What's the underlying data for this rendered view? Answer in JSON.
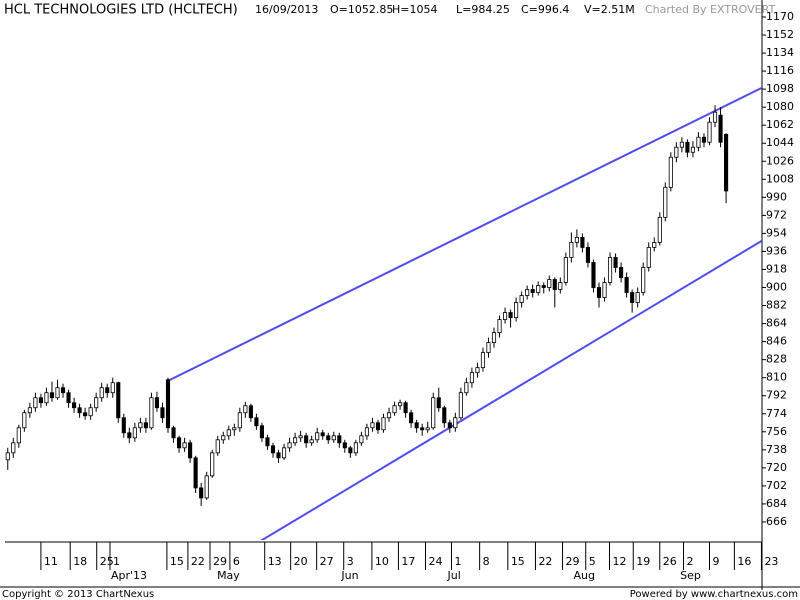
{
  "chart_data": {
    "type": "candlestick",
    "title": "HCL TECHNOLOGIES LTD (HCLTECH)",
    "date": "16/09/2013",
    "open_label": "O=1052.85",
    "high_label": "H=1054",
    "low_label": "L=984.25",
    "close_label": "C=996.4",
    "volume_label": "V=2.51M",
    "credit": "Charted By EXTROVERT",
    "copyright": "Copyright © 2013 ChartNexus",
    "powered_by": "Powered by www.chartnexus.com",
    "up_color": "#ffffff",
    "down_color": "#000000",
    "trendline_color": "#4d4df0",
    "xlim": [
      -0.5,
      136.5
    ],
    "ylim": [
      648,
      1176
    ],
    "yticks": [
      666,
      684,
      702,
      720,
      738,
      756,
      774,
      792,
      810,
      828,
      846,
      864,
      882,
      900,
      918,
      936,
      954,
      972,
      990,
      1008,
      1026,
      1044,
      1062,
      1080,
      1098,
      1116,
      1134,
      1152,
      1170
    ],
    "xticks": [
      {
        "value": 6,
        "label": "11"
      },
      {
        "value": 11.3,
        "label": "18"
      },
      {
        "value": 16.1,
        "label": "25"
      },
      {
        "value": 18.5,
        "label": "1"
      },
      {
        "value": 28.8,
        "label": "15"
      },
      {
        "value": 32.6,
        "label": "22"
      },
      {
        "value": 36.6,
        "label": "29"
      },
      {
        "value": 40.2,
        "label": "6"
      },
      {
        "value": 46.5,
        "label": "13"
      },
      {
        "value": 51.2,
        "label": "20"
      },
      {
        "value": 55.9,
        "label": "27"
      },
      {
        "value": 60.8,
        "label": "3"
      },
      {
        "value": 65.9,
        "label": "10"
      },
      {
        "value": 70.7,
        "label": "17"
      },
      {
        "value": 75.6,
        "label": "24"
      },
      {
        "value": 80.3,
        "label": "1"
      },
      {
        "value": 85.4,
        "label": "8"
      },
      {
        "value": 90.5,
        "label": "15"
      },
      {
        "value": 95.5,
        "label": "22"
      },
      {
        "value": 100.4,
        "label": "29"
      },
      {
        "value": 104.6,
        "label": "5"
      },
      {
        "value": 108.9,
        "label": "12"
      },
      {
        "value": 113.2,
        "label": "19"
      },
      {
        "value": 118,
        "label": "26"
      },
      {
        "value": 122.3,
        "label": "2"
      },
      {
        "value": 127,
        "label": "9"
      },
      {
        "value": 131.5,
        "label": "16"
      },
      {
        "value": 136.4,
        "label": "23"
      }
    ],
    "month_ticks": [
      {
        "value": 18.5,
        "label": "Apr'13"
      },
      {
        "value": 37.7,
        "label": "May"
      },
      {
        "value": 60.2,
        "label": "Jun"
      },
      {
        "value": 79.4,
        "label": "Jul"
      },
      {
        "value": 102.2,
        "label": "Aug"
      },
      {
        "value": 121.5,
        "label": "Sep"
      }
    ],
    "trendlines": [
      {
        "x": [
          29.3,
          136.4
        ],
        "y": [
          807.7,
          1099.1
        ]
      },
      {
        "x": [
          41.5,
          136.4
        ],
        "y": [
          633,
          946.4
        ]
      }
    ],
    "ohlc": [
      [
        728,
        740,
        718,
        735
      ],
      [
        735,
        750,
        730,
        745
      ],
      [
        745,
        763,
        740,
        760
      ],
      [
        760,
        778,
        756,
        775
      ],
      [
        775,
        785,
        770,
        780
      ],
      [
        780,
        795,
        776,
        790
      ],
      [
        790,
        794,
        780,
        785
      ],
      [
        785,
        800,
        782,
        795
      ],
      [
        795,
        806,
        786,
        790
      ],
      [
        790,
        808,
        788,
        800
      ],
      [
        800,
        804,
        790,
        795
      ],
      [
        795,
        798,
        780,
        785
      ],
      [
        785,
        790,
        775,
        780
      ],
      [
        780,
        784,
        770,
        775
      ],
      [
        775,
        780,
        768,
        772
      ],
      [
        772,
        784,
        768,
        780
      ],
      [
        780,
        795,
        776,
        790
      ],
      [
        790,
        805,
        786,
        800
      ],
      [
        800,
        804,
        790,
        795
      ],
      [
        795,
        810,
        790,
        805
      ],
      [
        805,
        806,
        765,
        770
      ],
      [
        770,
        774,
        750,
        755
      ],
      [
        755,
        760,
        745,
        750
      ],
      [
        750,
        765,
        746,
        760
      ],
      [
        760,
        770,
        755,
        765
      ],
      [
        765,
        770,
        755,
        760
      ],
      [
        760,
        795,
        758,
        790
      ],
      [
        790,
        796,
        776,
        780
      ],
      [
        780,
        785,
        765,
        770
      ],
      [
        808,
        810,
        755,
        760
      ],
      [
        760,
        762,
        745,
        750
      ],
      [
        750,
        752,
        735,
        740
      ],
      [
        740,
        750,
        736,
        745
      ],
      [
        745,
        748,
        725,
        730
      ],
      [
        730,
        732,
        695,
        700
      ],
      [
        700,
        705,
        682,
        690
      ],
      [
        690,
        716,
        688,
        712
      ],
      [
        712,
        738,
        710,
        735
      ],
      [
        735,
        752,
        732,
        748
      ],
      [
        748,
        756,
        744,
        752
      ],
      [
        752,
        762,
        748,
        758
      ],
      [
        758,
        764,
        752,
        760
      ],
      [
        760,
        780,
        756,
        775
      ],
      [
        775,
        786,
        770,
        782
      ],
      [
        782,
        784,
        766,
        770
      ],
      [
        770,
        774,
        758,
        762
      ],
      [
        762,
        765,
        746,
        750
      ],
      [
        750,
        753,
        738,
        742
      ],
      [
        742,
        745,
        730,
        735
      ],
      [
        735,
        738,
        725,
        730
      ],
      [
        730,
        744,
        728,
        740
      ],
      [
        740,
        750,
        736,
        745
      ],
      [
        745,
        755,
        742,
        750
      ],
      [
        750,
        757,
        746,
        752
      ],
      [
        752,
        755,
        740,
        745
      ],
      [
        745,
        752,
        742,
        748
      ],
      [
        748,
        760,
        745,
        755
      ],
      [
        755,
        758,
        748,
        752
      ],
      [
        752,
        755,
        744,
        748
      ],
      [
        748,
        756,
        745,
        752
      ],
      [
        752,
        755,
        740,
        745
      ],
      [
        745,
        748,
        735,
        740
      ],
      [
        740,
        742,
        730,
        735
      ],
      [
        735,
        748,
        732,
        745
      ],
      [
        745,
        756,
        742,
        752
      ],
      [
        752,
        764,
        748,
        760
      ],
      [
        760,
        770,
        756,
        765
      ],
      [
        765,
        768,
        754,
        758
      ],
      [
        758,
        774,
        755,
        770
      ],
      [
        770,
        780,
        766,
        775
      ],
      [
        775,
        786,
        772,
        782
      ],
      [
        782,
        788,
        778,
        785
      ],
      [
        785,
        787,
        770,
        775
      ],
      [
        775,
        778,
        760,
        765
      ],
      [
        765,
        768,
        755,
        760
      ],
      [
        760,
        764,
        752,
        758
      ],
      [
        758,
        766,
        755,
        760
      ],
      [
        760,
        795,
        758,
        790
      ],
      [
        790,
        800,
        776,
        780
      ],
      [
        780,
        782,
        760,
        765
      ],
      [
        765,
        768,
        755,
        760
      ],
      [
        760,
        775,
        756,
        770
      ],
      [
        770,
        800,
        768,
        795
      ],
      [
        795,
        810,
        792,
        805
      ],
      [
        805,
        820,
        800,
        815
      ],
      [
        815,
        825,
        810,
        820
      ],
      [
        820,
        840,
        816,
        835
      ],
      [
        835,
        850,
        830,
        845
      ],
      [
        845,
        860,
        840,
        855
      ],
      [
        855,
        872,
        850,
        868
      ],
      [
        868,
        880,
        864,
        875
      ],
      [
        875,
        878,
        860,
        870
      ],
      [
        870,
        890,
        866,
        885
      ],
      [
        885,
        896,
        880,
        892
      ],
      [
        892,
        902,
        888,
        898
      ],
      [
        898,
        903,
        890,
        895
      ],
      [
        895,
        906,
        892,
        902
      ],
      [
        902,
        905,
        894,
        900
      ],
      [
        900,
        912,
        896,
        908
      ],
      [
        908,
        910,
        880,
        898
      ],
      [
        898,
        910,
        894,
        905
      ],
      [
        905,
        935,
        902,
        930
      ],
      [
        930,
        955,
        925,
        945
      ],
      [
        945,
        958,
        940,
        950
      ],
      [
        950,
        954,
        935,
        940
      ],
      [
        940,
        945,
        920,
        925
      ],
      [
        925,
        928,
        895,
        900
      ],
      [
        900,
        905,
        880,
        890
      ],
      [
        890,
        910,
        886,
        905
      ],
      [
        905,
        935,
        902,
        930
      ],
      [
        930,
        934,
        915,
        920
      ],
      [
        920,
        925,
        905,
        910
      ],
      [
        910,
        915,
        890,
        895
      ],
      [
        895,
        898,
        875,
        885
      ],
      [
        885,
        900,
        880,
        895
      ],
      [
        895,
        925,
        892,
        920
      ],
      [
        920,
        945,
        916,
        940
      ],
      [
        940,
        950,
        936,
        945
      ],
      [
        945,
        975,
        942,
        970
      ],
      [
        970,
        1005,
        966,
        1000
      ],
      [
        1000,
        1035,
        996,
        1030
      ],
      [
        1030,
        1045,
        1025,
        1040
      ],
      [
        1040,
        1050,
        1035,
        1045
      ],
      [
        1045,
        1048,
        1030,
        1035
      ],
      [
        1035,
        1046,
        1030,
        1040
      ],
      [
        1040,
        1055,
        1036,
        1050
      ],
      [
        1050,
        1054,
        1040,
        1045
      ],
      [
        1045,
        1070,
        1042,
        1065
      ],
      [
        1065,
        1082,
        1060,
        1075
      ],
      [
        1072,
        1080,
        1040,
        1045
      ],
      [
        1052.85,
        1054,
        984.25,
        996.4
      ]
    ]
  }
}
